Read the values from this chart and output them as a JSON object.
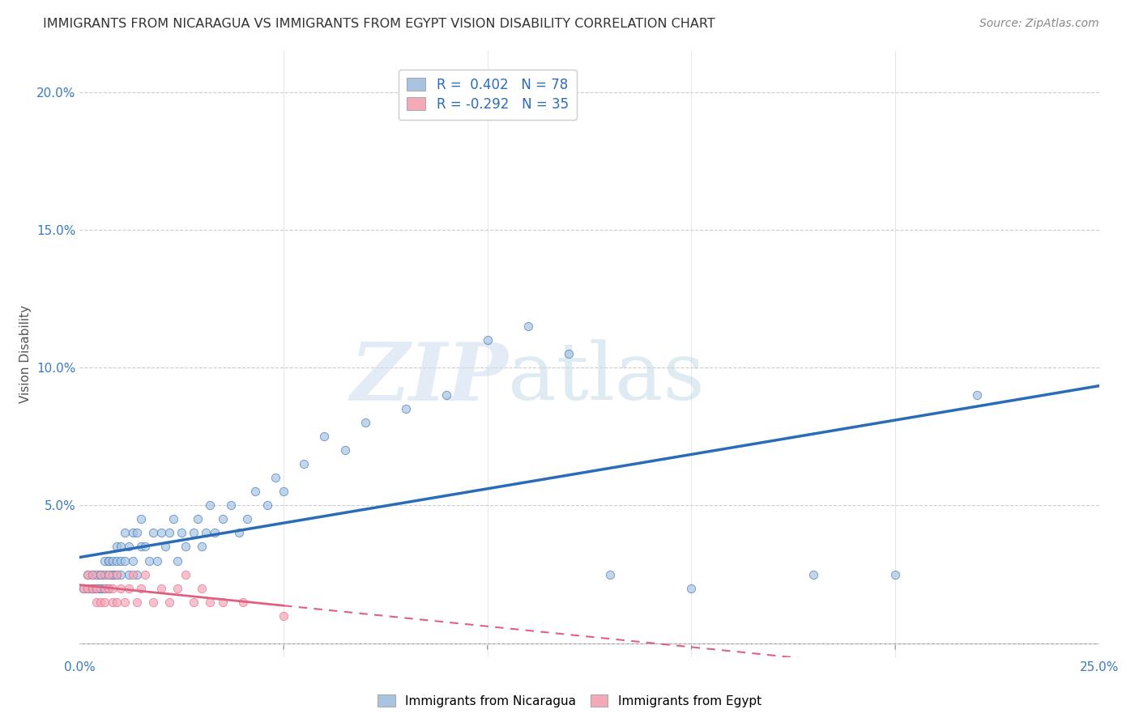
{
  "title": "IMMIGRANTS FROM NICARAGUA VS IMMIGRANTS FROM EGYPT VISION DISABILITY CORRELATION CHART",
  "source": "Source: ZipAtlas.com",
  "ylabel": "Vision Disability",
  "xlim": [
    0.0,
    0.25
  ],
  "ylim": [
    -0.005,
    0.215
  ],
  "yticks": [
    0.0,
    0.05,
    0.1,
    0.15,
    0.2
  ],
  "yticklabels": [
    "",
    "5.0%",
    "10.0%",
    "15.0%",
    "20.0%"
  ],
  "xtick_minor": [
    0.0,
    0.05,
    0.1,
    0.15,
    0.2,
    0.25
  ],
  "nicaragua_color": "#a8c4e0",
  "egypt_color": "#f4a8b8",
  "nicaragua_line_color": "#2b6cb8",
  "egypt_line_color": "#e06080",
  "R_nicaragua": 0.402,
  "N_nicaragua": 78,
  "R_egypt": -0.292,
  "N_egypt": 35,
  "legend_label_nicaragua": "Immigrants from Nicaragua",
  "legend_label_egypt": "Immigrants from Egypt",
  "watermark_zip": "ZIP",
  "watermark_atlas": "atlas",
  "nicaragua_x": [
    0.001,
    0.002,
    0.002,
    0.003,
    0.003,
    0.003,
    0.004,
    0.004,
    0.004,
    0.005,
    0.005,
    0.005,
    0.005,
    0.006,
    0.006,
    0.006,
    0.007,
    0.007,
    0.007,
    0.007,
    0.008,
    0.008,
    0.008,
    0.009,
    0.009,
    0.009,
    0.01,
    0.01,
    0.01,
    0.011,
    0.011,
    0.012,
    0.012,
    0.013,
    0.013,
    0.014,
    0.014,
    0.015,
    0.015,
    0.016,
    0.017,
    0.018,
    0.019,
    0.02,
    0.021,
    0.022,
    0.023,
    0.024,
    0.025,
    0.026,
    0.028,
    0.029,
    0.03,
    0.031,
    0.032,
    0.033,
    0.035,
    0.037,
    0.039,
    0.041,
    0.043,
    0.046,
    0.048,
    0.05,
    0.055,
    0.06,
    0.065,
    0.07,
    0.08,
    0.09,
    0.1,
    0.11,
    0.12,
    0.13,
    0.15,
    0.18,
    0.2,
    0.22
  ],
  "nicaragua_y": [
    0.02,
    0.02,
    0.025,
    0.02,
    0.025,
    0.02,
    0.02,
    0.025,
    0.02,
    0.025,
    0.02,
    0.02,
    0.025,
    0.025,
    0.03,
    0.02,
    0.03,
    0.025,
    0.02,
    0.03,
    0.025,
    0.03,
    0.025,
    0.03,
    0.025,
    0.035,
    0.03,
    0.025,
    0.035,
    0.03,
    0.04,
    0.035,
    0.025,
    0.04,
    0.03,
    0.04,
    0.025,
    0.035,
    0.045,
    0.035,
    0.03,
    0.04,
    0.03,
    0.04,
    0.035,
    0.04,
    0.045,
    0.03,
    0.04,
    0.035,
    0.04,
    0.045,
    0.035,
    0.04,
    0.05,
    0.04,
    0.045,
    0.05,
    0.04,
    0.045,
    0.055,
    0.05,
    0.06,
    0.055,
    0.065,
    0.075,
    0.07,
    0.08,
    0.085,
    0.09,
    0.11,
    0.115,
    0.105,
    0.025,
    0.02,
    0.025,
    0.025,
    0.09
  ],
  "egypt_x": [
    0.001,
    0.002,
    0.002,
    0.003,
    0.003,
    0.004,
    0.004,
    0.005,
    0.005,
    0.006,
    0.006,
    0.007,
    0.007,
    0.008,
    0.008,
    0.009,
    0.009,
    0.01,
    0.011,
    0.012,
    0.013,
    0.014,
    0.015,
    0.016,
    0.018,
    0.02,
    0.022,
    0.024,
    0.026,
    0.028,
    0.03,
    0.032,
    0.035,
    0.04,
    0.05
  ],
  "egypt_y": [
    0.02,
    0.02,
    0.025,
    0.02,
    0.025,
    0.015,
    0.02,
    0.025,
    0.015,
    0.02,
    0.015,
    0.02,
    0.025,
    0.015,
    0.02,
    0.025,
    0.015,
    0.02,
    0.015,
    0.02,
    0.025,
    0.015,
    0.02,
    0.025,
    0.015,
    0.02,
    0.015,
    0.02,
    0.025,
    0.015,
    0.02,
    0.015,
    0.015,
    0.015,
    0.01
  ]
}
